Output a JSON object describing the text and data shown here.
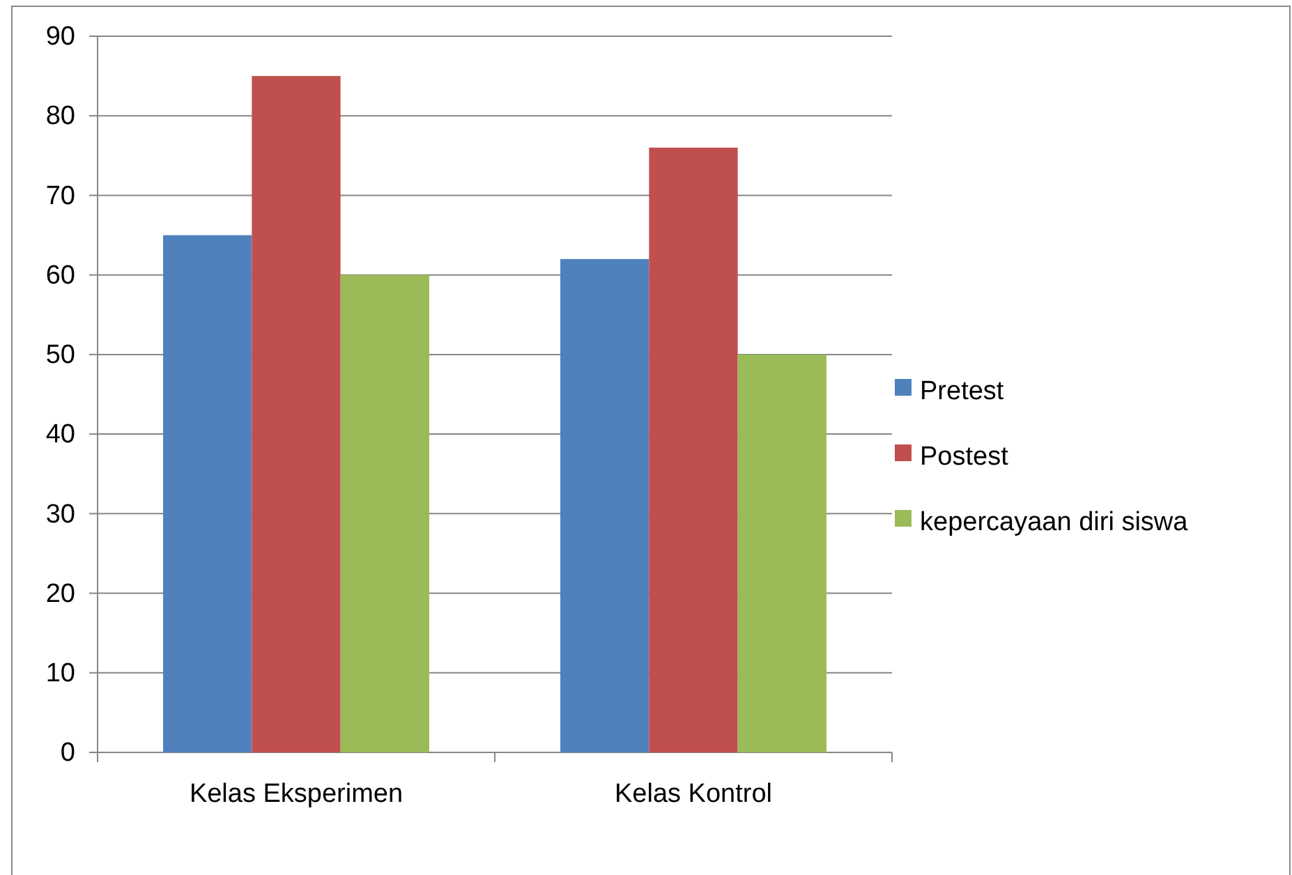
{
  "chart_data": {
    "type": "bar",
    "categories": [
      "Kelas Eksperimen",
      "Kelas Kontrol"
    ],
    "series": [
      {
        "name": "Pretest",
        "color": "#4f81bd",
        "values": [
          65,
          62
        ]
      },
      {
        "name": "Postest",
        "color": "#c0504d",
        "values": [
          85,
          76
        ]
      },
      {
        "name": "kepercayaan diri siswa",
        "color": "#9bbb59",
        "values": [
          60,
          50
        ]
      }
    ],
    "ylim": [
      0,
      90
    ],
    "yticks": [
      0,
      10,
      20,
      30,
      40,
      50,
      60,
      70,
      80,
      90
    ],
    "grid": "y",
    "legend": "right"
  }
}
